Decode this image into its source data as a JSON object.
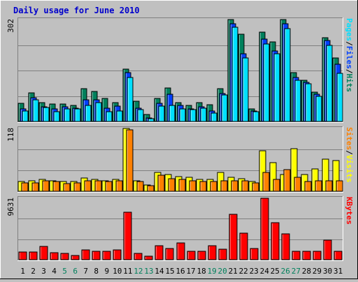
{
  "colors": {
    "background": "#c0c0c0",
    "panel": "#c0c0c0",
    "title": "#0000cc",
    "axis_text": "#000000",
    "weekend_day": "#00805c",
    "hits": "#00805c",
    "files": "#0040ff",
    "pages": "#00e0ff",
    "visits": "#ffff00",
    "sites": "#ff8000",
    "kbytes": "#ff0000",
    "separator": "#000000"
  },
  "chart_data": [
    {
      "type": "bar",
      "title": "Daily usage for June 2010",
      "scale_label": "302",
      "ymax": 302,
      "legend": [
        {
          "label": "Pages",
          "color_key": "pages"
        },
        {
          "label": "Files",
          "color_key": "files"
        },
        {
          "label": "Hits",
          "color_key": "hits"
        }
      ],
      "legend_separator": "/",
      "series": [
        {
          "key": "hits",
          "values": [
            54,
            85,
            56,
            52,
            52,
            48,
            98,
            88,
            68,
            56,
            155,
            60,
            20,
            68,
            100,
            55,
            48,
            55,
            50,
            98,
            302,
            258,
            38,
            265,
            235,
            302,
            144,
            122,
            86,
            248,
            188
          ]
        },
        {
          "key": "files",
          "values": [
            38,
            70,
            44,
            38,
            44,
            40,
            65,
            65,
            40,
            45,
            145,
            40,
            10,
            54,
            80,
            48,
            38,
            44,
            30,
            82,
            290,
            200,
            30,
            245,
            208,
            290,
            130,
            115,
            80,
            240,
            170
          ]
        },
        {
          "key": "pages",
          "values": [
            30,
            65,
            42,
            28,
            38,
            38,
            48,
            55,
            28,
            30,
            130,
            35,
            8,
            45,
            48,
            38,
            35,
            40,
            25,
            78,
            280,
            188,
            28,
            230,
            200,
            275,
            122,
            112,
            75,
            225,
            142
          ]
        }
      ]
    },
    {
      "type": "bar",
      "scale_label": "118",
      "ymax": 118,
      "legend": [
        {
          "label": "Sites",
          "color_key": "sites"
        },
        {
          "label": "Visits",
          "color_key": "visits"
        }
      ],
      "legend_separator": "/",
      "series": [
        {
          "key": "visits",
          "values": [
            18,
            20,
            22,
            20,
            18,
            18,
            25,
            22,
            20,
            22,
            118,
            20,
            12,
            35,
            32,
            28,
            26,
            22,
            22,
            36,
            26,
            24,
            18,
            76,
            54,
            32,
            80,
            32,
            42,
            60,
            58
          ]
        },
        {
          "key": "sites",
          "values": [
            16,
            16,
            20,
            18,
            15,
            16,
            20,
            20,
            18,
            20,
            116,
            18,
            10,
            30,
            24,
            22,
            20,
            18,
            18,
            20,
            20,
            20,
            16,
            36,
            22,
            40,
            26,
            18,
            20,
            20,
            20
          ]
        }
      ]
    },
    {
      "type": "bar",
      "scale_label": "9631",
      "ymax": 9631,
      "legend": [
        {
          "label": "KBytes",
          "color_key": "kbytes"
        }
      ],
      "series": [
        {
          "key": "kbytes",
          "values": [
            1210,
            1240,
            2070,
            1050,
            960,
            660,
            1510,
            1280,
            1320,
            1480,
            7450,
            1000,
            550,
            2200,
            1730,
            2680,
            1360,
            1290,
            2230,
            1680,
            7120,
            4110,
            1800,
            9631,
            5780,
            4090,
            1280,
            1360,
            1360,
            3060,
            1330
          ]
        }
      ]
    }
  ],
  "x_axis": {
    "labels": [
      "1",
      "2",
      "3",
      "4",
      "5",
      "6",
      "7",
      "8",
      "9",
      "10",
      "11",
      "12",
      "13",
      "14",
      "15",
      "16",
      "17",
      "18",
      "19",
      "20",
      "21",
      "22",
      "23",
      "24",
      "25",
      "26",
      "27",
      "28",
      "29",
      "30",
      "31"
    ],
    "weekend_days": [
      "5",
      "6",
      "12",
      "13",
      "19",
      "20",
      "26",
      "27"
    ]
  }
}
